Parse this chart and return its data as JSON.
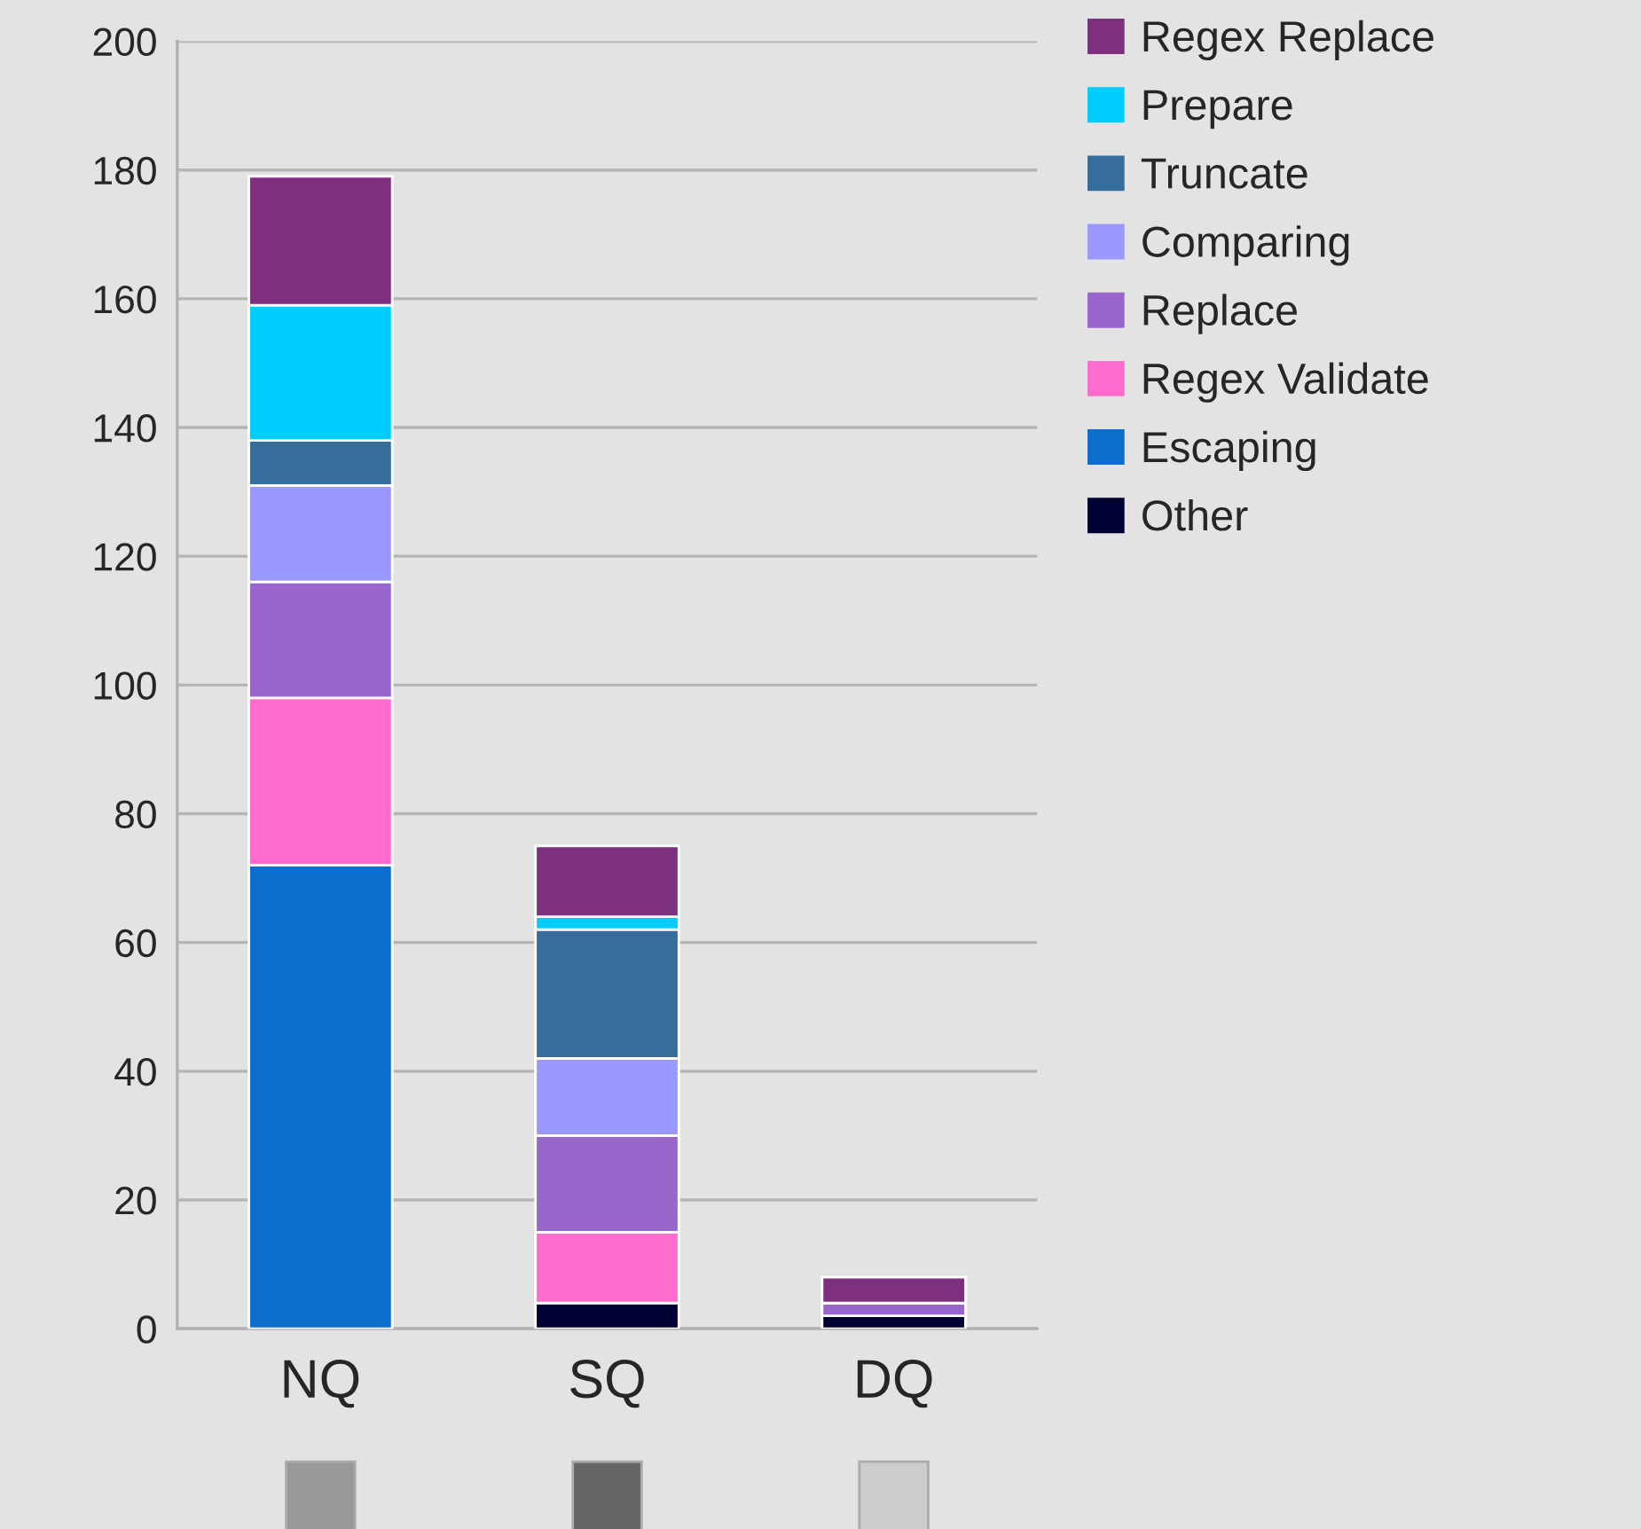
{
  "chart_data": {
    "type": "bar",
    "stacked": true,
    "categories": [
      "NQ",
      "SQ",
      "DQ"
    ],
    "series": [
      {
        "name": "Other",
        "color": "#000033",
        "values": [
          0,
          4,
          2
        ]
      },
      {
        "name": "Escaping",
        "color": "#0c6dce",
        "values": [
          72,
          0,
          0
        ]
      },
      {
        "name": "Regex Validate",
        "color": "#ff6ccc",
        "values": [
          26,
          11,
          0
        ]
      },
      {
        "name": "Replace",
        "color": "#9966cc",
        "values": [
          18,
          15,
          2
        ]
      },
      {
        "name": "Comparing",
        "color": "#9999ff",
        "values": [
          15,
          12,
          0
        ]
      },
      {
        "name": "Truncate",
        "color": "#376d9b",
        "values": [
          7,
          20,
          0
        ]
      },
      {
        "name": "Prepare",
        "color": "#00ccff",
        "values": [
          21,
          2,
          0
        ]
      },
      {
        "name": "Regex Replace",
        "color": "#7e2f7e",
        "values": [
          20,
          11,
          4
        ]
      }
    ],
    "ylim": [
      0,
      200
    ],
    "yticks": [
      0,
      20,
      40,
      60,
      80,
      100,
      120,
      140,
      160,
      180,
      200
    ],
    "grid": "y",
    "legend": "right"
  }
}
